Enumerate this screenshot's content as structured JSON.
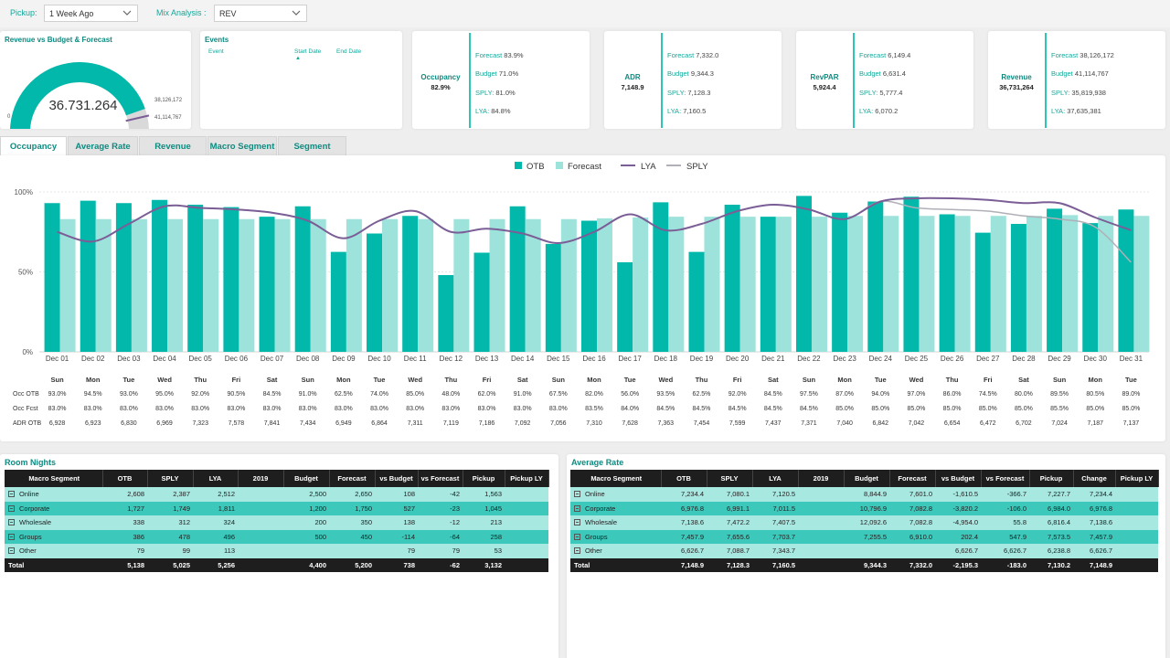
{
  "filters": {
    "pickup_label": "Pickup:",
    "pickup_value": "1 Week Ago",
    "mix_label": "Mix Analysis :",
    "mix_value": "REV"
  },
  "gauge": {
    "title": "Revenue vs Budget & Forecast",
    "value_text": "36.731.264",
    "min_label": "0",
    "forecast_label": "38,126,172",
    "budget_label": "41,114,767",
    "value": 36731264,
    "forecast": 38126172,
    "budget": 41114767
  },
  "events": {
    "title": "Events",
    "col_event": "Event",
    "col_start": "Start Date",
    "col_end": "End Date"
  },
  "kpis": [
    {
      "name": "Occupancy",
      "value": "82.9%",
      "rows": [
        {
          "k": "Forecast",
          "v": "83.9%"
        },
        {
          "k": "Budget",
          "v": "71.0%"
        },
        {
          "k": "SPLY:",
          "v": "81.0%"
        },
        {
          "k": "LYA:",
          "v": "84.8%"
        }
      ]
    },
    {
      "name": "ADR",
      "value": "7,148.9",
      "rows": [
        {
          "k": "Forecast",
          "v": "7,332.0"
        },
        {
          "k": "Budget",
          "v": "9,344.3"
        },
        {
          "k": "SPLY:",
          "v": "7,128.3"
        },
        {
          "k": "LYA:",
          "v": "7,160.5"
        }
      ]
    },
    {
      "name": "RevPAR",
      "value": "5,924.4",
      "rows": [
        {
          "k": "Forecast",
          "v": "6,149.4"
        },
        {
          "k": "Budget",
          "v": "6,631.4"
        },
        {
          "k": "SPLY:",
          "v": "5,777.4"
        },
        {
          "k": "LYA:",
          "v": "6,070.2"
        }
      ]
    },
    {
      "name": "Revenue",
      "value": "36,731,264",
      "rows": [
        {
          "k": "Forecast",
          "v": "38,126,172"
        },
        {
          "k": "Budget",
          "v": "41,114,767"
        },
        {
          "k": "SPLY:",
          "v": "35,819,938"
        },
        {
          "k": "LYA:",
          "v": "37,635,381"
        }
      ]
    }
  ],
  "tabs": [
    "Occupancy",
    "Average Rate",
    "Revenue",
    "Macro Segment",
    "Segment"
  ],
  "active_tab": "Occupancy",
  "chart_data": {
    "type": "bar",
    "categories": [
      "Dec 01",
      "Dec 02",
      "Dec 03",
      "Dec 04",
      "Dec 05",
      "Dec 06",
      "Dec 07",
      "Dec 08",
      "Dec 09",
      "Dec 10",
      "Dec 11",
      "Dec 12",
      "Dec 13",
      "Dec 14",
      "Dec 15",
      "Dec 16",
      "Dec 17",
      "Dec 18",
      "Dec 19",
      "Dec 20",
      "Dec 21",
      "Dec 22",
      "Dec 23",
      "Dec 24",
      "Dec 25",
      "Dec 26",
      "Dec 27",
      "Dec 28",
      "Dec 29",
      "Dec 30",
      "Dec 31"
    ],
    "ylim": [
      0,
      100
    ],
    "yticks": [
      {
        "v": 0,
        "label": "0%"
      },
      {
        "v": 50,
        "label": "50%"
      },
      {
        "v": 100,
        "label": "100%"
      }
    ],
    "legend_position": "top-center",
    "series": [
      {
        "name": "OTB",
        "kind": "bar",
        "color": "#01b8aa",
        "values": [
          93.0,
          94.5,
          93.0,
          95.0,
          92.0,
          90.5,
          84.5,
          91.0,
          62.5,
          74.0,
          85.0,
          48.0,
          62.0,
          91.0,
          67.5,
          82.0,
          56.0,
          93.5,
          62.5,
          92.0,
          84.5,
          97.5,
          87.0,
          94.0,
          97.0,
          86.0,
          74.5,
          80.0,
          89.5,
          80.5,
          89.0
        ]
      },
      {
        "name": "Forecast",
        "kind": "bar",
        "color": "#9ee2dc",
        "values": [
          83.0,
          83.0,
          83.0,
          83.0,
          83.0,
          83.0,
          83.0,
          83.0,
          83.0,
          83.0,
          83.0,
          83.0,
          83.0,
          83.0,
          83.0,
          83.5,
          84.0,
          84.5,
          84.5,
          84.5,
          84.5,
          84.5,
          85.0,
          85.0,
          85.0,
          85.0,
          85.0,
          85.0,
          85.5,
          85.0,
          85.0
        ]
      },
      {
        "name": "LYA",
        "kind": "line",
        "color": "#7b5e96",
        "values": [
          75,
          69,
          80,
          91,
          90,
          89,
          87,
          82,
          71,
          82,
          88,
          75,
          77,
          74,
          68,
          75,
          86,
          76,
          80,
          88,
          92,
          89,
          83,
          94,
          96,
          96,
          95,
          93,
          93,
          84,
          76
        ]
      },
      {
        "name": "SPLY",
        "kind": "line",
        "color": "#b0b0b8",
        "values": [
          75,
          69,
          80,
          91,
          90,
          89,
          87,
          82,
          71,
          82,
          88,
          75,
          77,
          74,
          68,
          75,
          86,
          76,
          80,
          88,
          92,
          89,
          83,
          94,
          90,
          89,
          88,
          85,
          83,
          78,
          56
        ]
      }
    ],
    "detail_days": [
      "Sun",
      "Mon",
      "Tue",
      "Wed",
      "Thu",
      "Fri",
      "Sat",
      "Sun",
      "Mon",
      "Tue",
      "Wed",
      "Thu",
      "Fri",
      "Sat",
      "Sun",
      "Mon",
      "Tue",
      "Wed",
      "Thu",
      "Fri",
      "Sat",
      "Sun",
      "Mon",
      "Tue",
      "Wed",
      "Thu",
      "Fri",
      "Sat",
      "Sun",
      "Mon",
      "Tue"
    ],
    "detail_rows": [
      {
        "label": "Occ OTB",
        "values": [
          "93.0%",
          "94.5%",
          "93.0%",
          "95.0%",
          "92.0%",
          "90.5%",
          "84.5%",
          "91.0%",
          "62.5%",
          "74.0%",
          "85.0%",
          "48.0%",
          "62.0%",
          "91.0%",
          "67.5%",
          "82.0%",
          "56.0%",
          "93.5%",
          "62.5%",
          "92.0%",
          "84.5%",
          "97.5%",
          "87.0%",
          "94.0%",
          "97.0%",
          "86.0%",
          "74.5%",
          "80.0%",
          "89.5%",
          "80.5%",
          "89.0%"
        ]
      },
      {
        "label": "Occ Fcst",
        "values": [
          "83.0%",
          "83.0%",
          "83.0%",
          "83.0%",
          "83.0%",
          "83.0%",
          "83.0%",
          "83.0%",
          "83.0%",
          "83.0%",
          "83.0%",
          "83.0%",
          "83.0%",
          "83.0%",
          "83.0%",
          "83.5%",
          "84.0%",
          "84.5%",
          "84.5%",
          "84.5%",
          "84.5%",
          "84.5%",
          "85.0%",
          "85.0%",
          "85.0%",
          "85.0%",
          "85.0%",
          "85.0%",
          "85.5%",
          "85.0%",
          "85.0%"
        ]
      },
      {
        "label": "ADR OTB",
        "values": [
          "6,928",
          "6,923",
          "6,830",
          "6,969",
          "7,323",
          "7,578",
          "7,841",
          "7,434",
          "6,949",
          "6,864",
          "7,311",
          "7,119",
          "7,186",
          "7,092",
          "7,056",
          "7,310",
          "7,628",
          "7,363",
          "7,454",
          "7,599",
          "7,437",
          "7,371",
          "7,040",
          "6,842",
          "7,042",
          "6,654",
          "6,472",
          "6,702",
          "7,024",
          "7,187",
          "7,137"
        ]
      }
    ]
  },
  "room_nights": {
    "title": "Room Nights",
    "headers": [
      "Macro Segment",
      "OTB",
      "SPLY",
      "LYA",
      "2019",
      "Budget",
      "Forecast",
      "vs Budget",
      "vs Forecast",
      "Pickup",
      "Pickup LY"
    ],
    "rows": [
      [
        "Online",
        "2,608",
        "2,387",
        "2,512",
        "",
        "2,500",
        "2,650",
        "108",
        "-42",
        "1,563",
        ""
      ],
      [
        "Corporate",
        "1,727",
        "1,749",
        "1,811",
        "",
        "1,200",
        "1,750",
        "527",
        "-23",
        "1,045",
        ""
      ],
      [
        "Wholesale",
        "338",
        "312",
        "324",
        "",
        "200",
        "350",
        "138",
        "-12",
        "213",
        ""
      ],
      [
        "Groups",
        "386",
        "478",
        "496",
        "",
        "500",
        "450",
        "-114",
        "-64",
        "258",
        ""
      ],
      [
        "Other",
        "79",
        "99",
        "113",
        "",
        "",
        "",
        "79",
        "79",
        "53",
        ""
      ]
    ],
    "total": [
      "Total",
      "5,138",
      "5,025",
      "5,256",
      "",
      "4,400",
      "5,200",
      "738",
      "-62",
      "3,132",
      ""
    ]
  },
  "average_rate": {
    "title": "Average Rate",
    "headers": [
      "Macro Segment",
      "OTB",
      "SPLY",
      "LYA",
      "2019",
      "Budget",
      "Forecast",
      "vs Budget",
      "vs Forecast",
      "Pickup",
      "Change",
      "Pickup LY"
    ],
    "rows": [
      [
        "Online",
        "7,234.4",
        "7,080.1",
        "7,120.5",
        "",
        "8,844.9",
        "7,601.0",
        "-1,610.5",
        "-366.7",
        "7,227.7",
        "7,234.4",
        ""
      ],
      [
        "Corporate",
        "6,976.8",
        "6,991.1",
        "7,011.5",
        "",
        "10,796.9",
        "7,082.8",
        "-3,820.2",
        "-106.0",
        "6,984.0",
        "6,976.8",
        ""
      ],
      [
        "Wholesale",
        "7,138.6",
        "7,472.2",
        "7,407.5",
        "",
        "12,092.6",
        "7,082.8",
        "-4,954.0",
        "55.8",
        "6,816.4",
        "7,138.6",
        ""
      ],
      [
        "Groups",
        "7,457.9",
        "7,655.6",
        "7,703.7",
        "",
        "7,255.5",
        "6,910.0",
        "202.4",
        "547.9",
        "7,573.5",
        "7,457.9",
        ""
      ],
      [
        "Other",
        "6,626.7",
        "7,088.7",
        "7,343.7",
        "",
        "",
        "",
        "6,626.7",
        "6,626.7",
        "6,238.8",
        "6,626.7",
        ""
      ]
    ],
    "total": [
      "Total",
      "7,148.9",
      "7,128.3",
      "7,160.5",
      "",
      "9,344.3",
      "7,332.0",
      "-2,195.3",
      "-183.0",
      "7,130.2",
      "7,148.9",
      ""
    ]
  }
}
